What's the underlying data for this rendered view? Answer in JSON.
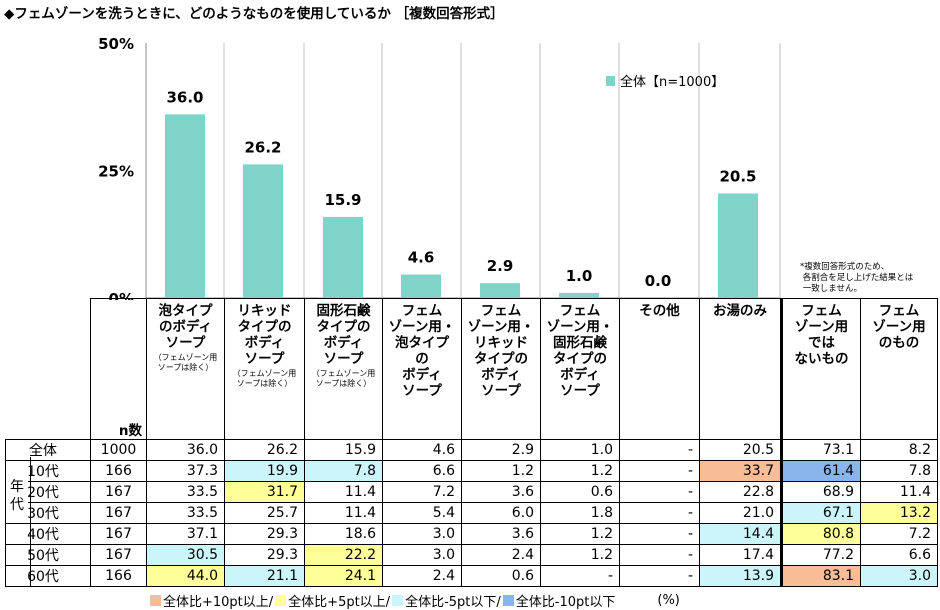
{
  "title": "◆フェムゾーンを洗うときに、どのようなものを使用しているか ［複数回答形式］",
  "chart_data": {
    "type": "bar",
    "categories": [
      "泡タイプのボディソープ（フェムゾーン用ソープは除く）",
      "リキッドタイプのボディソープ（フェムゾーン用ソープは除く）",
      "固形石鹸タイプのボディソープ（フェムゾーン用ソープは除く）",
      "フェムゾーン用・泡タイプのボディソープ",
      "フェムゾーン用・リキッドタイプのボディソープ",
      "フェムゾーン用・固形石鹸タイプのボディソープ",
      "その他",
      "お湯のみ"
    ],
    "values": [
      36.0,
      26.2,
      15.9,
      4.6,
      2.9,
      1.0,
      0.0,
      20.5
    ],
    "value_labels": [
      "36.0",
      "26.2",
      "15.9",
      "4.6",
      "2.9",
      "1.0",
      "0.0",
      "20.5"
    ],
    "series": [
      {
        "name": "全体【n=1000】",
        "values": [
          36.0,
          26.2,
          15.9,
          4.6,
          2.9,
          1.0,
          0.0,
          20.5
        ]
      }
    ],
    "yticks": [
      "0%",
      "25%",
      "50%"
    ],
    "ylim": [
      0,
      50
    ],
    "color": "#7fd3c8",
    "legend_position": "top-right"
  },
  "legend_label": "全体【n=1000】",
  "note": "*複数回答形式のため、\n 各割合を足し上げた結果とは\n 一致しません。",
  "table": {
    "n_header": "n数",
    "age_group_label": "年\n代",
    "headers": [
      {
        "main": "泡タイプ\nのボディ\nソープ",
        "sub": "（フェムゾーン用\nソープは除く）"
      },
      {
        "main": "リキッド\nタイプの\nボディ\nソープ",
        "sub": "（フェムゾーン用\nソープは除く）"
      },
      {
        "main": "固形石鹸\nタイプの\nボディ\nソープ",
        "sub": "（フェムゾーン用\nソープは除く）"
      },
      {
        "main": "フェム\nゾーン用・\n泡タイプ\nの\nボディ\nソープ",
        "sub": ""
      },
      {
        "main": "フェム\nゾーン用・\nリキッド\nタイプの\nボディ\nソープ",
        "sub": ""
      },
      {
        "main": "フェム\nゾーン用・\n固形石鹸\nタイプの\nボディ\nソープ",
        "sub": ""
      },
      {
        "main": "その他",
        "sub": ""
      },
      {
        "main": "お湯のみ",
        "sub": ""
      },
      {
        "main": "フェム\nゾーン用\nでは\nないもの",
        "sub": ""
      },
      {
        "main": "フェム\nゾーン用\nのもの",
        "sub": ""
      }
    ],
    "rows": [
      {
        "label": "全体",
        "n": "1000",
        "values": [
          "36.0",
          "26.2",
          "15.9",
          "4.6",
          "2.9",
          "1.0",
          "-",
          "20.5",
          "73.1",
          "8.2"
        ],
        "colors": [
          "",
          "",
          "",
          "",
          "",
          "",
          "",
          "",
          "",
          ""
        ]
      },
      {
        "label": "10代",
        "n": "166",
        "values": [
          "37.3",
          "19.9",
          "7.8",
          "6.6",
          "1.2",
          "1.2",
          "-",
          "33.7",
          "61.4",
          "7.8"
        ],
        "colors": [
          "",
          "m5",
          "m5",
          "",
          "",
          "",
          "",
          "p10",
          "m10",
          ""
        ]
      },
      {
        "label": "20代",
        "n": "167",
        "values": [
          "33.5",
          "31.7",
          "11.4",
          "7.2",
          "3.6",
          "0.6",
          "-",
          "22.8",
          "68.9",
          "11.4"
        ],
        "colors": [
          "",
          "p5",
          "",
          "",
          "",
          "",
          "",
          "",
          "",
          ""
        ]
      },
      {
        "label": "30代",
        "n": "167",
        "values": [
          "33.5",
          "25.7",
          "11.4",
          "5.4",
          "6.0",
          "1.8",
          "-",
          "21.0",
          "67.1",
          "13.2"
        ],
        "colors": [
          "",
          "",
          "",
          "",
          "",
          "",
          "",
          "",
          "m5",
          "p5"
        ]
      },
      {
        "label": "40代",
        "n": "167",
        "values": [
          "37.1",
          "29.3",
          "18.6",
          "3.0",
          "3.6",
          "1.2",
          "-",
          "14.4",
          "80.8",
          "7.2"
        ],
        "colors": [
          "",
          "",
          "",
          "",
          "",
          "",
          "",
          "m5",
          "p5",
          ""
        ]
      },
      {
        "label": "50代",
        "n": "167",
        "values": [
          "30.5",
          "29.3",
          "22.2",
          "3.0",
          "2.4",
          "1.2",
          "-",
          "17.4",
          "77.2",
          "6.6"
        ],
        "colors": [
          "m5",
          "",
          "p5",
          "",
          "",
          "",
          "",
          "",
          "",
          ""
        ]
      },
      {
        "label": "60代",
        "n": "166",
        "values": [
          "44.0",
          "21.1",
          "24.1",
          "2.4",
          "0.6",
          "-",
          "-",
          "13.9",
          "83.1",
          "3.0"
        ],
        "colors": [
          "p5",
          "m5",
          "p5",
          "",
          "",
          "",
          "",
          "m5",
          "p10",
          "m5"
        ]
      }
    ]
  },
  "bottom_legend": [
    {
      "label": "全体比+10pt以上/",
      "color": "#f7bd96"
    },
    {
      "label": "全体比+5pt以上/",
      "color": "#ffff99"
    },
    {
      "label": "全体比-5pt以下/",
      "color": "#ccf5fb"
    },
    {
      "label": "全体比-10pt以下",
      "color": "#8ab4ec"
    }
  ],
  "unit": "(%)"
}
